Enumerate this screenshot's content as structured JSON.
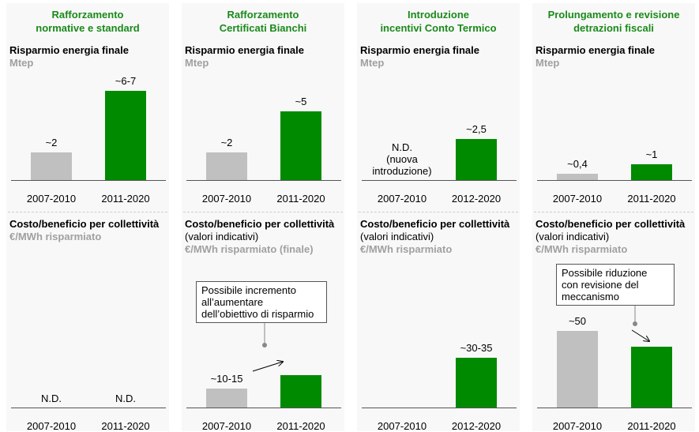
{
  "chart_data": [
    {
      "type": "bar",
      "title": "Rafforzamento\nnormative e standard",
      "subtitle": "Risparmio energia finale",
      "unit": "Mtep",
      "categories": [
        "2007-2010",
        "2011-2020"
      ],
      "values": [
        2,
        6.5
      ],
      "value_labels": [
        "~2",
        "~6-7"
      ],
      "colors": [
        "#c0c0c0",
        "#008a00"
      ],
      "ylim": [
        0,
        7.5
      ]
    },
    {
      "type": "bar",
      "subtitle": "Costo/beneficio per collettività",
      "unit": "€/MWh risparmiato",
      "categories": [
        "2007-2010",
        "2011-2020"
      ],
      "values": [
        null,
        null
      ],
      "value_labels": [
        "N.D.",
        "N.D."
      ],
      "colors": [
        "#c0c0c0",
        "#008a00"
      ],
      "ylim": [
        0,
        60
      ]
    },
    {
      "type": "bar",
      "title": "Rafforzamento\nCertificati Bianchi",
      "subtitle": "Risparmio energia finale",
      "unit": "Mtep",
      "categories": [
        "2007-2010",
        "2011-2020"
      ],
      "values": [
        2,
        5
      ],
      "value_labels": [
        "~2",
        "~5"
      ],
      "colors": [
        "#c0c0c0",
        "#008a00"
      ],
      "ylim": [
        0,
        7.5
      ]
    },
    {
      "type": "bar",
      "subtitle": "Costo/beneficio per collettività",
      "subtitle_note": " (valori indicativi)",
      "unit": "€/MWh risparmiato (finale)",
      "categories": [
        "2007-2010",
        "2011-2020"
      ],
      "values": [
        12.5,
        21
      ],
      "value_labels": [
        "~10-15",
        null
      ],
      "colors": [
        "#c0c0c0",
        "#008a00"
      ],
      "ylim": [
        0,
        60
      ],
      "annotation": "Possibile incremento\nall’aumentare\ndell’obiettivo di risparmio"
    },
    {
      "type": "bar",
      "title": "Introduzione\nincentivi Conto Termico",
      "subtitle": "Risparmio energia finale",
      "unit": "Mtep",
      "categories": [
        "2007-2010",
        "2012-2020"
      ],
      "values": [
        null,
        2.5
      ],
      "value_labels": [
        "N.D.\n(nuova\nintroduzione)",
        "~2,5"
      ],
      "colors": [
        "#c0c0c0",
        "#008a00"
      ],
      "ylim": [
        0,
        6.25
      ]
    },
    {
      "type": "bar",
      "subtitle": "Costo/beneficio per collettività",
      "subtitle_note": " (valori indicativi)",
      "unit": "€/MWh risparmiato",
      "categories": [
        "2007-2010",
        "2012-2020"
      ],
      "values": [
        null,
        32.5
      ],
      "value_labels": [
        null,
        "~30-35"
      ],
      "colors": [
        "#c0c0c0",
        "#008a00"
      ],
      "ylim": [
        0,
        60
      ]
    },
    {
      "type": "bar",
      "title": "Prolungamento e revisione\ndetrazioni fiscali",
      "subtitle": "Risparmio energia finale",
      "unit": "Mtep",
      "categories": [
        "2007-2010",
        "2011-2020"
      ],
      "values": [
        0.4,
        1
      ],
      "value_labels": [
        "~0,4",
        "~1"
      ],
      "colors": [
        "#c0c0c0",
        "#008a00"
      ],
      "ylim": [
        0,
        6.5
      ]
    },
    {
      "type": "bar",
      "subtitle": "Costo/beneficio per collettività",
      "subtitle_note": " (valori indicativi)",
      "unit": "€/MWh risparmiato",
      "categories": [
        "2007-2010",
        "2011-2020"
      ],
      "values": [
        50,
        40
      ],
      "value_labels": [
        "~50",
        null
      ],
      "colors": [
        "#c0c0c0",
        "#008a00"
      ],
      "ylim": [
        0,
        60
      ],
      "annotation": "Possibile riduzione\ncon revisione del\nmeccanismo"
    }
  ]
}
